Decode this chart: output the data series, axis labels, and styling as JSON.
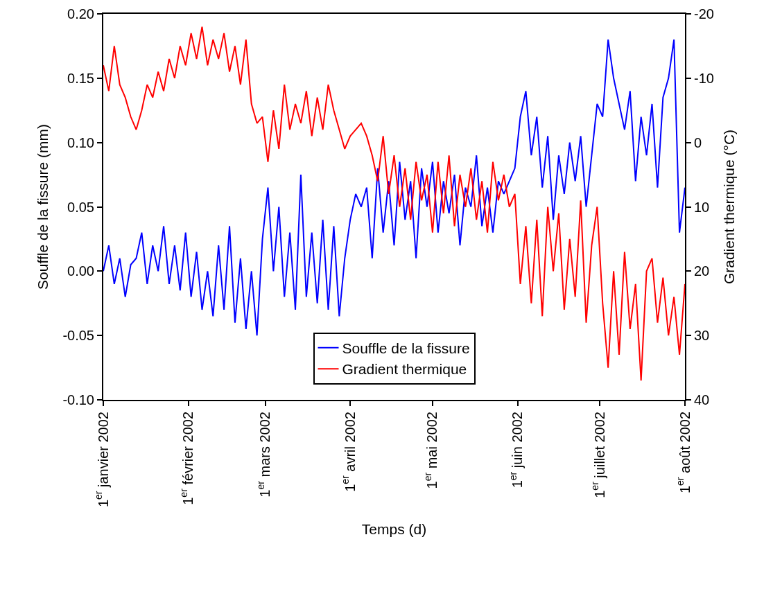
{
  "chart_data": {
    "type": "line",
    "xlabel": "Temps (d)",
    "ylabel": "Souffle de la fissure (mm)",
    "y2label": "Gradient thermique (°C)",
    "x": [
      "2002-01-01",
      "2002-01-03",
      "2002-01-05",
      "2002-01-07",
      "2002-01-09",
      "2002-01-11",
      "2002-01-13",
      "2002-01-15",
      "2002-01-17",
      "2002-01-19",
      "2002-01-21",
      "2002-01-23",
      "2002-01-25",
      "2002-01-27",
      "2002-01-29",
      "2002-01-31",
      "2002-02-02",
      "2002-02-04",
      "2002-02-06",
      "2002-02-08",
      "2002-02-10",
      "2002-02-12",
      "2002-02-14",
      "2002-02-16",
      "2002-02-18",
      "2002-02-20",
      "2002-02-22",
      "2002-02-24",
      "2002-02-26",
      "2002-02-28",
      "2002-03-02",
      "2002-03-04",
      "2002-03-06",
      "2002-03-08",
      "2002-03-10",
      "2002-03-12",
      "2002-03-14",
      "2002-03-16",
      "2002-03-18",
      "2002-03-20",
      "2002-03-22",
      "2002-03-24",
      "2002-03-26",
      "2002-03-28",
      "2002-03-30",
      "2002-04-01",
      "2002-04-03",
      "2002-04-05",
      "2002-04-07",
      "2002-04-09",
      "2002-04-11",
      "2002-04-13",
      "2002-04-15",
      "2002-04-17",
      "2002-04-19",
      "2002-04-21",
      "2002-04-23",
      "2002-04-25",
      "2002-04-27",
      "2002-04-29",
      "2002-05-01",
      "2002-05-03",
      "2002-05-05",
      "2002-05-07",
      "2002-05-09",
      "2002-05-11",
      "2002-05-13",
      "2002-05-15",
      "2002-05-17",
      "2002-05-19",
      "2002-05-21",
      "2002-05-23",
      "2002-05-25",
      "2002-05-27",
      "2002-05-29",
      "2002-05-31",
      "2002-06-02",
      "2002-06-04",
      "2002-06-06",
      "2002-06-08",
      "2002-06-10",
      "2002-06-12",
      "2002-06-14",
      "2002-06-16",
      "2002-06-18",
      "2002-06-20",
      "2002-06-22",
      "2002-06-24",
      "2002-06-26",
      "2002-06-28",
      "2002-06-30",
      "2002-07-02",
      "2002-07-04",
      "2002-07-06",
      "2002-07-08",
      "2002-07-10",
      "2002-07-12",
      "2002-07-14",
      "2002-07-16",
      "2002-07-18",
      "2002-07-20",
      "2002-07-22",
      "2002-07-24",
      "2002-07-26",
      "2002-07-28",
      "2002-07-30",
      "2002-08-01"
    ],
    "series": [
      {
        "name": "Souffle de la fissure",
        "color": "#0000ff",
        "values": [
          0.0,
          0.02,
          -0.01,
          0.01,
          -0.02,
          0.005,
          0.01,
          0.03,
          -0.01,
          0.02,
          0.0,
          0.035,
          -0.01,
          0.02,
          -0.015,
          0.03,
          -0.02,
          0.015,
          -0.03,
          0.0,
          -0.035,
          0.02,
          -0.03,
          0.035,
          -0.04,
          0.01,
          -0.045,
          0.0,
          -0.05,
          0.025,
          0.065,
          0.0,
          0.05,
          -0.02,
          0.03,
          -0.03,
          0.075,
          -0.02,
          0.03,
          -0.025,
          0.04,
          -0.03,
          0.035,
          -0.035,
          0.01,
          0.04,
          0.06,
          0.05,
          0.065,
          0.01,
          0.08,
          0.03,
          0.07,
          0.02,
          0.085,
          0.04,
          0.07,
          0.01,
          0.08,
          0.05,
          0.085,
          0.03,
          0.07,
          0.045,
          0.075,
          0.02,
          0.065,
          0.05,
          0.09,
          0.035,
          0.065,
          0.03,
          0.07,
          0.06,
          0.07,
          0.08,
          0.12,
          0.14,
          0.09,
          0.12,
          0.065,
          0.105,
          0.04,
          0.09,
          0.06,
          0.1,
          0.07,
          0.105,
          0.05,
          0.09,
          0.13,
          0.12,
          0.18,
          0.15,
          0.13,
          0.11,
          0.14,
          0.07,
          0.12,
          0.09,
          0.13,
          0.065,
          0.135,
          0.15,
          0.18,
          0.03,
          0.065
        ]
      },
      {
        "name": "Gradient thermique",
        "color": "#ff0000",
        "axis": "y2",
        "values": [
          -12,
          -8,
          -15,
          -9,
          -7,
          -4,
          -2,
          -5,
          -9,
          -7,
          -11,
          -8,
          -13,
          -10,
          -15,
          -12,
          -17,
          -13,
          -18,
          -12,
          -16,
          -13,
          -17,
          -11,
          -15,
          -9,
          -16,
          -6,
          -3,
          -4,
          3,
          -5,
          1,
          -9,
          -2,
          -6,
          -3,
          -8,
          -1,
          -7,
          -2,
          -9,
          -5,
          -2,
          1,
          -1,
          -2,
          -3,
          -1,
          2,
          6,
          -1,
          8,
          2,
          10,
          4,
          12,
          3,
          9,
          5,
          14,
          3,
          11,
          2,
          13,
          5,
          10,
          4,
          12,
          6,
          14,
          3,
          9,
          5,
          10,
          8,
          22,
          13,
          25,
          12,
          27,
          10,
          20,
          11,
          26,
          15,
          24,
          9,
          28,
          16,
          10,
          25,
          35,
          20,
          33,
          17,
          29,
          22,
          37,
          20,
          18,
          28,
          21,
          30,
          24,
          33,
          22
        ]
      }
    ],
    "xlim": [
      "2002-01-01",
      "2002-08-01"
    ],
    "xticks": [
      {
        "value": "2002-01-01",
        "label": "1$^{er}$ janvier 2002"
      },
      {
        "value": "2002-02-01",
        "label": "1$^{er}$ février 2002"
      },
      {
        "value": "2002-03-01",
        "label": "1$^{er}$ mars 2002"
      },
      {
        "value": "2002-04-01",
        "label": "1$^{er}$ avril 2002"
      },
      {
        "value": "2002-05-01",
        "label": "1$^{er}$ mai 2002"
      },
      {
        "value": "2002-06-01",
        "label": "1$^{er}$ juin 2002"
      },
      {
        "value": "2002-07-01",
        "label": "1$^{er}$ juillet 2002"
      },
      {
        "value": "2002-08-01",
        "label": "1$^{er}$ août 2002"
      }
    ],
    "ylim": [
      -0.1,
      0.2
    ],
    "yticks": [
      {
        "value": -0.1,
        "label": "-0.10"
      },
      {
        "value": -0.05,
        "label": "-0.05"
      },
      {
        "value": 0,
        "label": "0.00"
      },
      {
        "value": 0.05,
        "label": "0.05"
      },
      {
        "value": 0.1,
        "label": "0.10"
      },
      {
        "value": 0.15,
        "label": "0.15"
      },
      {
        "value": 0.2,
        "label": "0.20"
      }
    ],
    "y2lim": [
      40,
      -20
    ],
    "y2ticks": [
      -20,
      -10,
      0,
      10,
      20,
      30,
      40
    ],
    "grid": false,
    "legend": "bottom",
    "marker": "none",
    "line_style": "solid"
  }
}
